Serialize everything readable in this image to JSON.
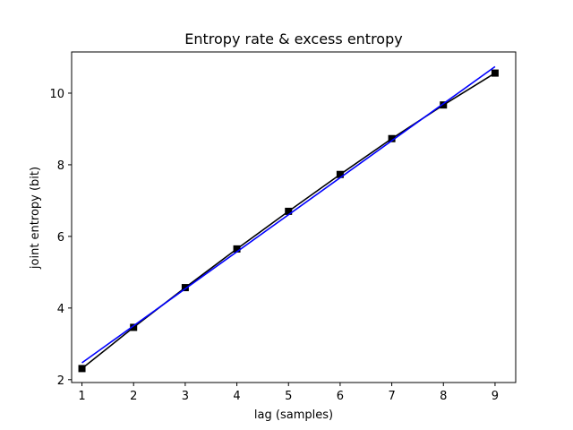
{
  "chart_data": {
    "type": "line",
    "title": "Entropy rate & excess entropy",
    "xlabel": "lag (samples)",
    "ylabel": "joint entropy (bit)",
    "xlim": [
      0.8,
      9.4
    ],
    "ylim": [
      1.92,
      11.15
    ],
    "xticks": [
      1,
      2,
      3,
      4,
      5,
      6,
      7,
      8,
      9
    ],
    "yticks": [
      2,
      4,
      6,
      8,
      10
    ],
    "grid": false,
    "series": [
      {
        "kind": "data",
        "color": "#000000",
        "marker": "square",
        "x": [
          1,
          2,
          3,
          4,
          5,
          6,
          7,
          8,
          9
        ],
        "y": [
          2.31,
          3.46,
          4.57,
          5.65,
          6.7,
          7.73,
          8.73,
          9.67,
          10.56
        ]
      },
      {
        "kind": "fit",
        "color": "#0000ff",
        "marker": "none",
        "x": [
          1,
          9
        ],
        "y": [
          2.47,
          10.74
        ]
      }
    ]
  }
}
